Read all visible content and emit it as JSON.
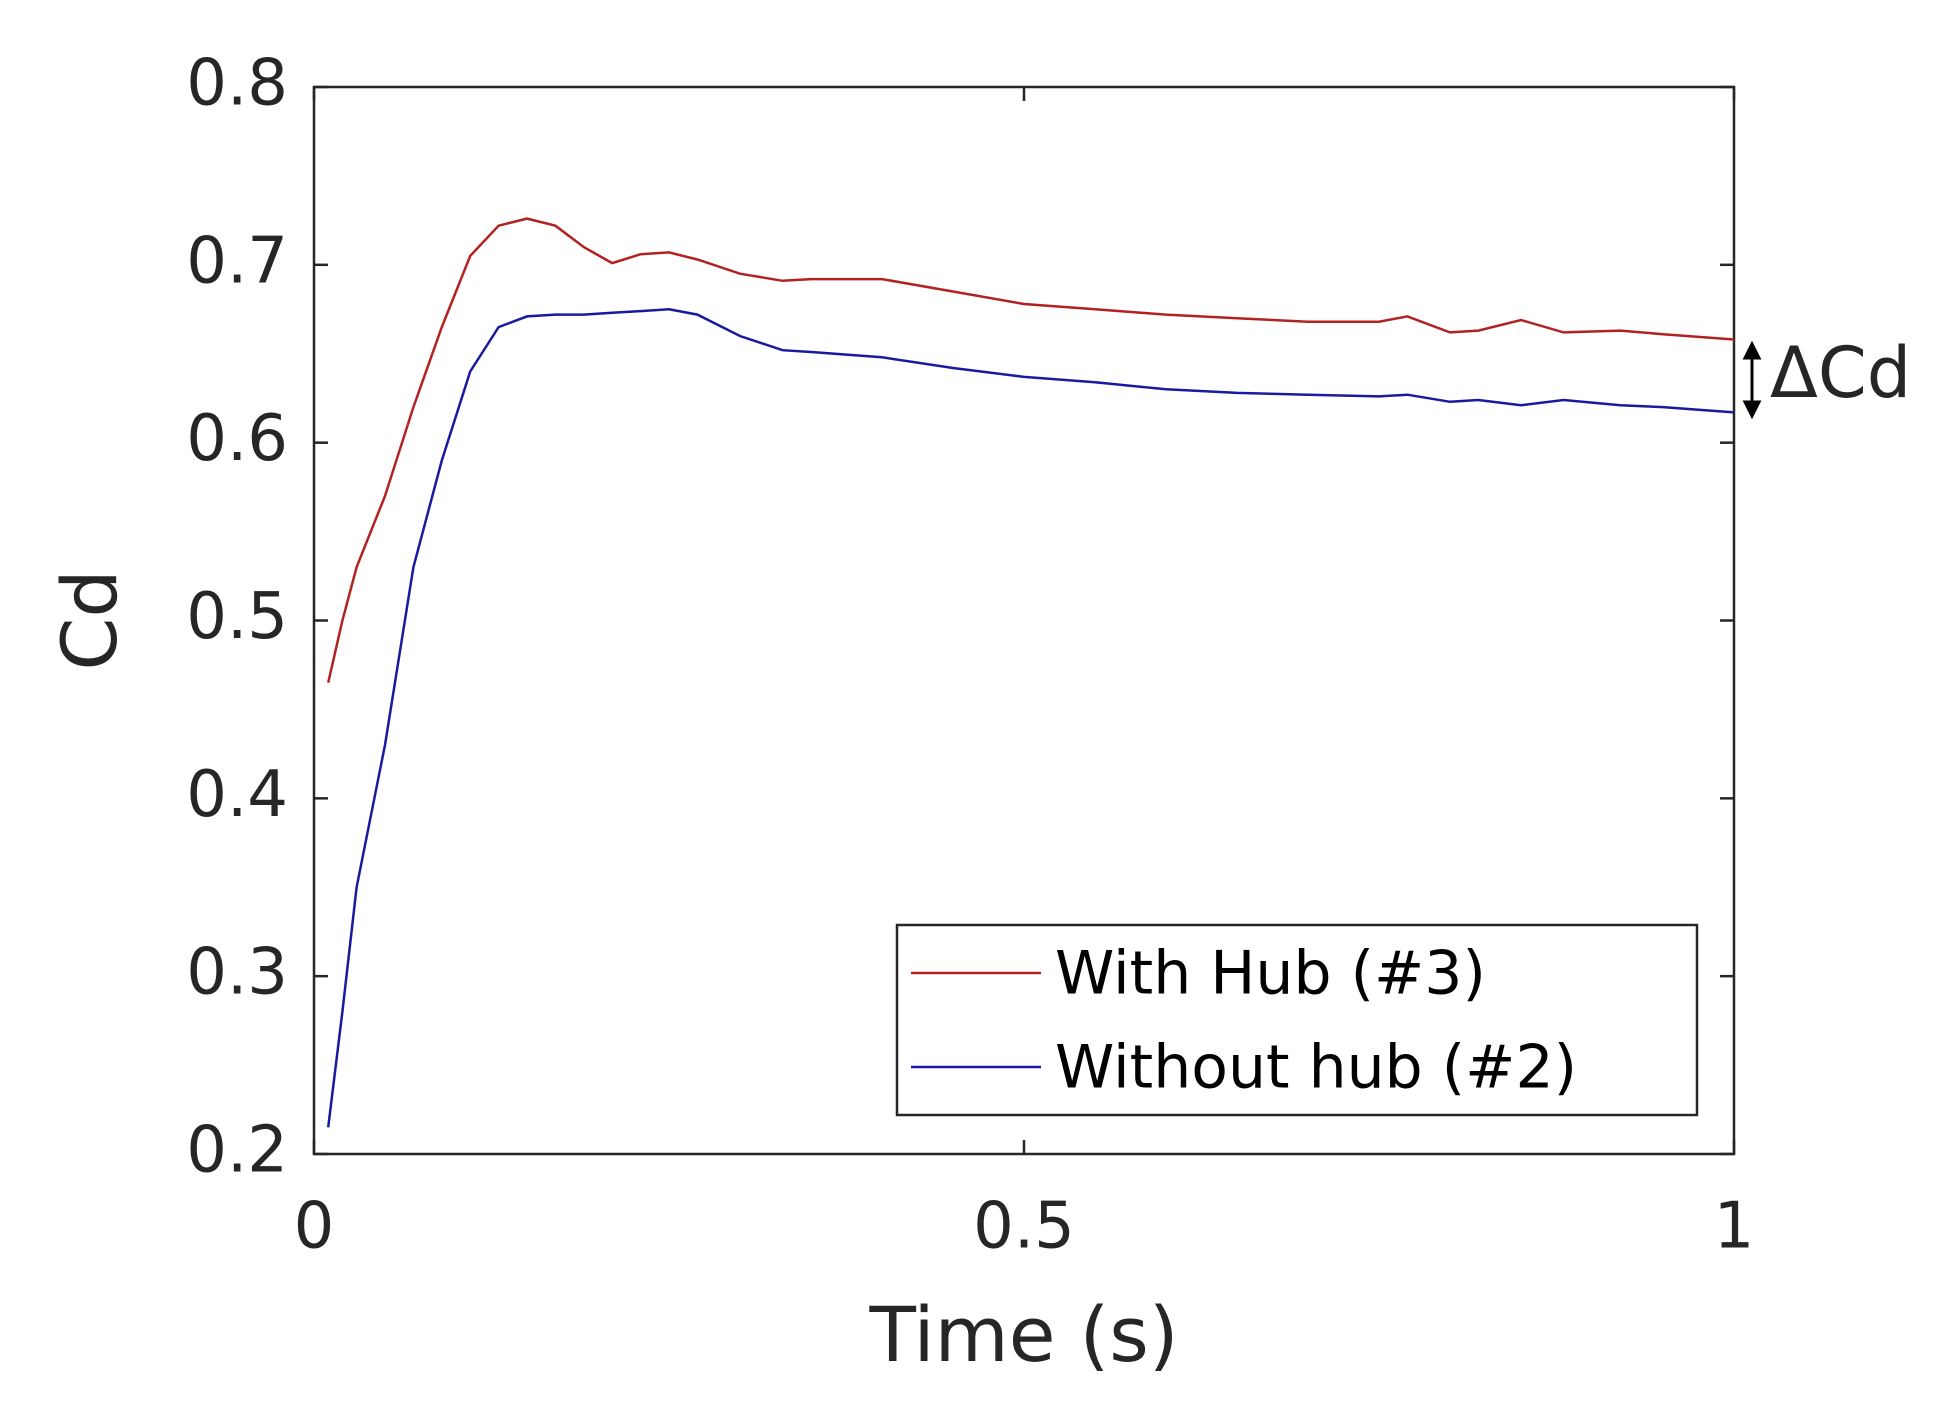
{
  "chart_data": {
    "type": "line",
    "xlabel": "Time (s)",
    "ylabel": "Cd",
    "x": [
      0.01,
      0.02,
      0.03,
      0.05,
      0.07,
      0.09,
      0.11,
      0.13,
      0.15,
      0.17,
      0.19,
      0.21,
      0.23,
      0.25,
      0.27,
      0.3,
      0.33,
      0.35,
      0.4,
      0.45,
      0.5,
      0.55,
      0.6,
      0.65,
      0.7,
      0.75,
      0.77,
      0.8,
      0.82,
      0.85,
      0.88,
      0.92,
      0.95,
      1.0
    ],
    "series": [
      {
        "name": "With Hub (#3)",
        "color": "#b22222",
        "values": [
          0.465,
          0.5,
          0.53,
          0.57,
          0.62,
          0.665,
          0.705,
          0.722,
          0.726,
          0.722,
          0.71,
          0.701,
          0.706,
          0.707,
          0.703,
          0.695,
          0.691,
          0.692,
          0.692,
          0.685,
          0.678,
          0.675,
          0.672,
          0.67,
          0.668,
          0.668,
          0.671,
          0.662,
          0.663,
          0.669,
          0.662,
          0.663,
          0.661,
          0.658
        ]
      },
      {
        "name": "Without hub (#2)",
        "color": "#1a1a9e",
        "values": [
          0.215,
          0.28,
          0.35,
          0.43,
          0.53,
          0.59,
          0.64,
          0.665,
          0.671,
          0.672,
          0.672,
          0.673,
          0.674,
          0.675,
          0.672,
          0.66,
          0.652,
          0.651,
          0.648,
          0.642,
          0.637,
          0.634,
          0.63,
          0.628,
          0.627,
          0.626,
          0.627,
          0.623,
          0.624,
          0.621,
          0.624,
          0.621,
          0.62,
          0.617
        ]
      }
    ],
    "xlim": [
      0,
      1
    ],
    "xticks": [
      0,
      0.5,
      1
    ],
    "ylim": [
      0.2,
      0.8
    ],
    "yticks": [
      0.2,
      0.3,
      0.4,
      0.5,
      0.6,
      0.7,
      0.8
    ],
    "legend": "lower right",
    "annotation": "ΔCd"
  }
}
